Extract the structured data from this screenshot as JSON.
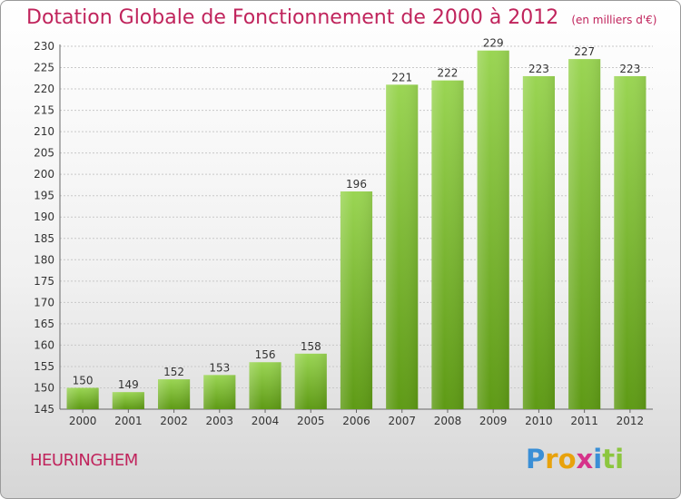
{
  "header": {
    "title": "Dotation Globale de Fonctionnement de 2000 à 2012",
    "unit": "(en milliers d'€)"
  },
  "commune": "HEURINGHEM",
  "logo": {
    "text": "Proxiti",
    "letters": [
      {
        "char": "P",
        "color": "#3a8fd6"
      },
      {
        "char": "r",
        "color": "#e8a20c"
      },
      {
        "char": "o",
        "color": "#e8a20c"
      },
      {
        "char": "x",
        "color": "#d6338a"
      },
      {
        "char": "i",
        "color": "#3a8fd6"
      },
      {
        "char": "t",
        "color": "#8cc63f"
      },
      {
        "char": "i",
        "color": "#8cc63f"
      }
    ]
  },
  "colors": {
    "title": "#c0245c",
    "bar_top": "#9ad553",
    "bar_bottom": "#5e9a15",
    "grid": "#c8c8c8"
  },
  "chart_data": {
    "type": "bar",
    "categories": [
      "2000",
      "2001",
      "2002",
      "2003",
      "2004",
      "2005",
      "2006",
      "2007",
      "2008",
      "2009",
      "2010",
      "2011",
      "2012"
    ],
    "values": [
      150,
      149,
      152,
      153,
      156,
      158,
      196,
      221,
      222,
      229,
      223,
      227,
      223
    ],
    "ylim": [
      145,
      230
    ],
    "yticks": [
      145,
      150,
      155,
      160,
      165,
      170,
      175,
      180,
      185,
      190,
      195,
      200,
      205,
      210,
      215,
      220,
      225,
      230
    ],
    "grid": true,
    "xlabel": "",
    "ylabel": ""
  }
}
